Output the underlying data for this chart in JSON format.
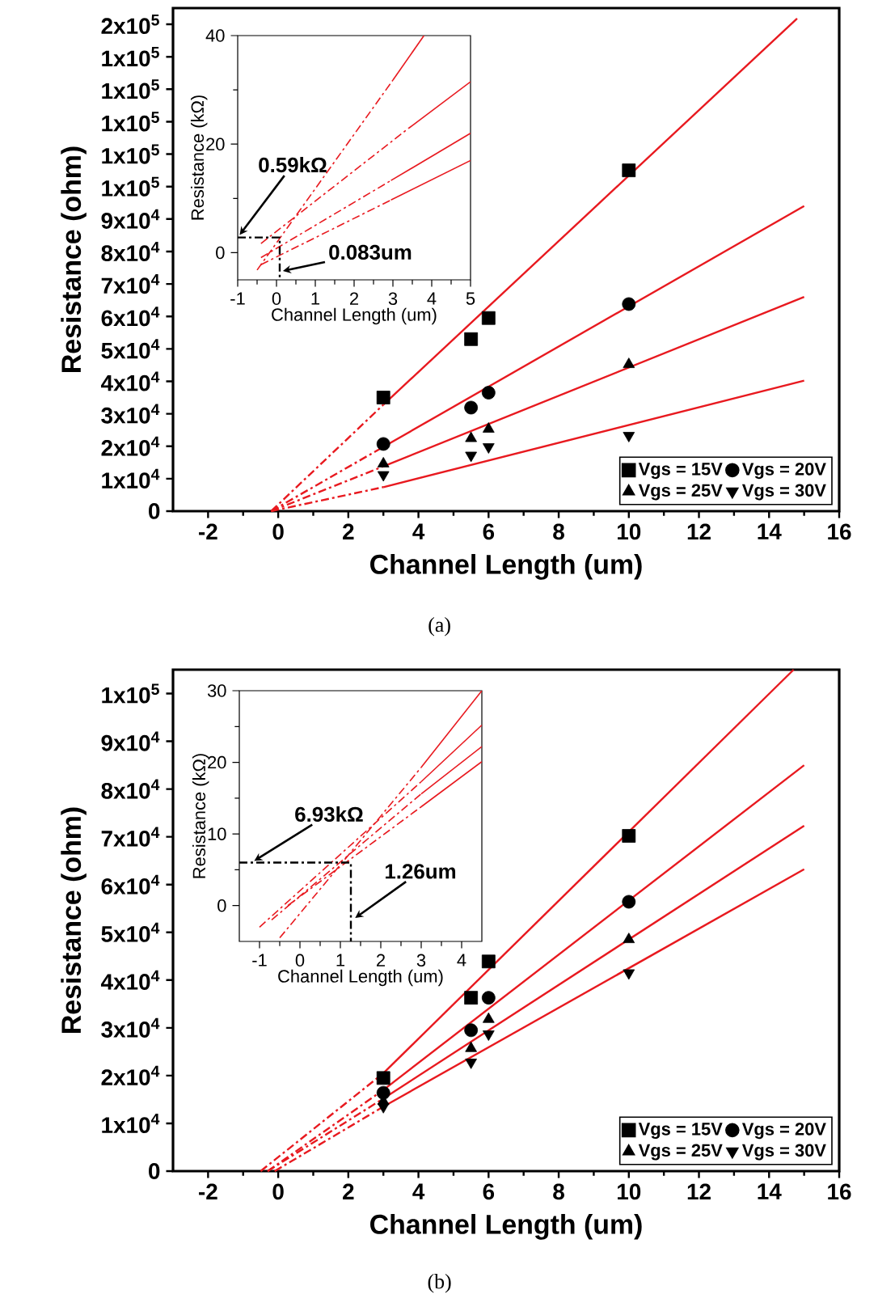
{
  "chart_data": [
    {
      "type": "scatter",
      "xlabel": "Channel Length (um)",
      "ylabel": "Resistance (ohm)",
      "xlim": [
        -3,
        16
      ],
      "ylim": [
        0,
        155000
      ],
      "xticks": [
        -2,
        0,
        2,
        4,
        6,
        8,
        10,
        12,
        14,
        16
      ],
      "yticks": [
        0,
        {
          "value": 10000,
          "label": "1x10$^{4}$"
        },
        {
          "value": 20000,
          "label": "2x10$^{4}$"
        },
        {
          "value": 30000,
          "label": "3x10$^{4}$"
        },
        {
          "value": 40000,
          "label": "4x10$^{4}$"
        },
        {
          "value": 50000,
          "label": "5x10$^{4}$"
        },
        {
          "value": 60000,
          "label": "6x10$^{4}$"
        },
        {
          "value": 70000,
          "label": "7x10$^{4}$"
        },
        {
          "value": 80000,
          "label": "8x10$^{4}$"
        },
        {
          "value": 90000,
          "label": "9x10$^{4}$"
        },
        {
          "value": 100000,
          "label": "1x10$^{5}$"
        },
        {
          "value": 110000,
          "label": "1x10$^{5}$"
        },
        {
          "value": 120000,
          "label": "1x10$^{5}$"
        },
        {
          "value": 130000,
          "label": "1x10$^{5}$"
        },
        {
          "value": 140000,
          "label": "1x10$^{5}$"
        },
        {
          "value": 150000,
          "label": "2x10$^{5}$"
        }
      ],
      "x": [
        3,
        5.5,
        6,
        10
      ],
      "legend": "bottom right",
      "annotations": [
        "(a)"
      ],
      "series": [
        {
          "name": "Vgs = 15V",
          "type": "scatter",
          "marker": "square",
          "color": "#000000",
          "values": [
            35000,
            53000,
            59500,
            105000
          ]
        },
        {
          "name": "Vgs = 20V",
          "type": "scatter",
          "marker": "circle",
          "color": "#000000",
          "values": [
            20700,
            31900,
            36500,
            63800
          ]
        },
        {
          "name": "Vgs = 25V",
          "type": "scatter",
          "marker": "triangle",
          "color": "#000000",
          "values": [
            14600,
            22400,
            25300,
            45200
          ]
        },
        {
          "name": "Vgs = 30V",
          "type": "scatter",
          "marker": "triangle_down",
          "color": "#000000",
          "values": [
            11200,
            17200,
            19800,
            23300
          ]
        },
        {
          "type": "line",
          "line_style": "dashed",
          "color": "#e8191f",
          "x": [
            -0.2,
            3
          ],
          "values": [
            0,
            32800
          ]
        },
        {
          "type": "line",
          "line_style": "solid",
          "color": "#e8191f",
          "x": [
            3,
            14.8
          ],
          "values": [
            32800,
            151800
          ]
        },
        {
          "type": "line",
          "line_style": "dashed",
          "color": "#e8191f",
          "x": [
            -0.2,
            3
          ],
          "values": [
            0,
            19800
          ]
        },
        {
          "type": "line",
          "line_style": "solid",
          "color": "#e8191f",
          "x": [
            3,
            15
          ],
          "values": [
            19800,
            94000
          ]
        },
        {
          "type": "line",
          "line_style": "dashed",
          "color": "#e8191f",
          "x": [
            -0.2,
            3
          ],
          "values": [
            0,
            13800
          ]
        },
        {
          "type": "line",
          "line_style": "solid",
          "color": "#e8191f",
          "x": [
            3,
            15
          ],
          "values": [
            13800,
            66000
          ]
        },
        {
          "type": "line",
          "line_style": "dashed",
          "color": "#e8191f",
          "x": [
            -0.2,
            3
          ],
          "values": [
            0,
            7400
          ]
        },
        {
          "type": "line",
          "line_style": "solid",
          "color": "#e8191f",
          "x": [
            3,
            15
          ],
          "values": [
            7400,
            40200
          ]
        }
      ]
    },
    {
      "type": "line",
      "xlabel": "Channel Length (um)",
      "ylabel": "Resistance (kΩ)",
      "xlim": [
        -1,
        5
      ],
      "ylim": [
        -5,
        40
      ],
      "xticks": [
        -1,
        0,
        1,
        2,
        3,
        4,
        5
      ],
      "yticks": [
        0,
        20,
        40
      ],
      "annotations": [
        {
          "text": "0.59kΩ",
          "x": -1,
          "y": 2.8
        },
        {
          "text": "0.083um",
          "x": 0.083,
          "y": -3.5
        }
      ],
      "series": [
        {
          "line_style": "dashed",
          "color": "#e8191f",
          "x": [
            -0.5,
            3
          ],
          "values": [
            -3.2,
            31.8
          ]
        },
        {
          "line_style": "solid",
          "color": "#e8191f",
          "x": [
            3,
            3.8
          ],
          "values": [
            31.8,
            40
          ]
        },
        {
          "line_style": "dashed",
          "color": "#e8191f",
          "x": [
            -0.4,
            3.4
          ],
          "values": [
            1.7,
            22.9
          ]
        },
        {
          "line_style": "solid",
          "color": "#e8191f",
          "x": [
            3.4,
            5
          ],
          "values": [
            22.9,
            31.5
          ]
        },
        {
          "line_style": "dashed",
          "color": "#e8191f",
          "x": [
            -0.4,
            2.95
          ],
          "values": [
            -0.9,
            13.3
          ]
        },
        {
          "line_style": "solid",
          "color": "#e8191f",
          "x": [
            2.95,
            5
          ],
          "values": [
            13.3,
            22
          ]
        },
        {
          "line_style": "dashed",
          "color": "#e8191f",
          "x": [
            -0.4,
            2.95
          ],
          "values": [
            -2.2,
            9.7
          ]
        },
        {
          "line_style": "solid",
          "color": "#e8191f",
          "x": [
            2.95,
            5
          ],
          "values": [
            9.7,
            17
          ]
        },
        {
          "line_style": "dashed",
          "color": "#000000",
          "x": [
            -1,
            0.083,
            0.083
          ],
          "values": [
            2.8,
            2.8,
            -5
          ]
        }
      ]
    },
    {
      "type": "scatter",
      "xlabel": "Channel Length (um)",
      "ylabel": "Resistance (ohm)",
      "xlim": [
        -3,
        16
      ],
      "ylim": [
        0,
        105000
      ],
      "xticks": [
        -2,
        0,
        2,
        4,
        6,
        8,
        10,
        12,
        14,
        16
      ],
      "yticks": [
        0,
        {
          "value": 10000,
          "label": "1x10$^{4}$"
        },
        {
          "value": 20000,
          "label": "2x10$^{4}$"
        },
        {
          "value": 30000,
          "label": "3x10$^{4}$"
        },
        {
          "value": 40000,
          "label": "4x10$^{4}$"
        },
        {
          "value": 50000,
          "label": "5x10$^{4}$"
        },
        {
          "value": 60000,
          "label": "6x10$^{4}$"
        },
        {
          "value": 70000,
          "label": "7x10$^{4}$"
        },
        {
          "value": 80000,
          "label": "8x10$^{4}$"
        },
        {
          "value": 90000,
          "label": "9x10$^{4}$"
        },
        {
          "value": 100000,
          "label": "1x10$^{5}$"
        }
      ],
      "x": [
        3,
        5.5,
        6,
        10
      ],
      "legend": "bottom right",
      "annotations": [
        "(b)"
      ],
      "series": [
        {
          "name": "Vgs = 15V",
          "type": "scatter",
          "marker": "square",
          "color": "#000000",
          "values": [
            19500,
            36300,
            43900,
            70200
          ]
        },
        {
          "name": "Vgs = 20V",
          "type": "scatter",
          "marker": "circle",
          "color": "#000000",
          "values": [
            16400,
            29500,
            36300,
            56400
          ]
        },
        {
          "name": "Vgs = 25V",
          "type": "scatter",
          "marker": "triangle",
          "color": "#000000",
          "values": [
            14600,
            25700,
            31800,
            48500
          ]
        },
        {
          "name": "Vgs = 30V",
          "type": "scatter",
          "marker": "triangle_down",
          "color": "#000000",
          "values": [
            13500,
            22800,
            28700,
            41500
          ]
        },
        {
          "type": "line",
          "line_style": "dashed",
          "color": "#e8191f",
          "x": [
            -0.5,
            3
          ],
          "values": [
            0,
            20500
          ]
        },
        {
          "type": "line",
          "line_style": "solid",
          "color": "#e8191f",
          "x": [
            3,
            14.7
          ],
          "values": [
            20500,
            105000
          ]
        },
        {
          "type": "line",
          "line_style": "dashed",
          "color": "#e8191f",
          "x": [
            -0.3,
            3
          ],
          "values": [
            0,
            17000
          ]
        },
        {
          "type": "line",
          "line_style": "solid",
          "color": "#e8191f",
          "x": [
            3,
            15
          ],
          "values": [
            17000,
            85000
          ]
        },
        {
          "type": "line",
          "line_style": "dashed",
          "color": "#e8191f",
          "x": [
            -0.3,
            3
          ],
          "values": [
            0,
            15200
          ]
        },
        {
          "type": "line",
          "line_style": "solid",
          "color": "#e8191f",
          "x": [
            3,
            15
          ],
          "values": [
            15200,
            72300
          ]
        },
        {
          "type": "line",
          "line_style": "dashed",
          "color": "#e8191f",
          "x": [
            -0.1,
            3
          ],
          "values": [
            0,
            13500
          ]
        },
        {
          "type": "line",
          "line_style": "solid",
          "color": "#e8191f",
          "x": [
            3,
            15
          ],
          "values": [
            13500,
            63200
          ]
        }
      ]
    },
    {
      "type": "line",
      "xlabel": "Channel Length (um)",
      "ylabel": "Resistance (kΩ)",
      "xlim": [
        -1.5,
        4.5
      ],
      "ylim": [
        -5,
        30
      ],
      "xticks": [
        -1,
        0,
        1,
        2,
        3,
        4
      ],
      "yticks": [
        0,
        10,
        20,
        30
      ],
      "annotations": [
        {
          "text": "6.93kΩ",
          "x": -1.2,
          "y": 6
        },
        {
          "text": "1.26um",
          "x": 1.3,
          "y": -2
        }
      ],
      "series": [
        {
          "line_style": "dashed",
          "color": "#e8191f",
          "x": [
            -0.5,
            3
          ],
          "values": [
            -4.5,
            19.3
          ]
        },
        {
          "line_style": "solid",
          "color": "#e8191f",
          "x": [
            3,
            4.5
          ],
          "values": [
            19.3,
            30
          ]
        },
        {
          "line_style": "dashed",
          "color": "#e8191f",
          "x": [
            -1,
            3
          ],
          "values": [
            -3,
            17.3
          ]
        },
        {
          "line_style": "solid",
          "color": "#e8191f",
          "x": [
            3,
            4.5
          ],
          "values": [
            17.3,
            25.2
          ]
        },
        {
          "line_style": "dashed",
          "color": "#e8191f",
          "x": [
            -0.7,
            3
          ],
          "values": [
            -2,
            15.6
          ]
        },
        {
          "line_style": "solid",
          "color": "#e8191f",
          "x": [
            3,
            4.5
          ],
          "values": [
            15.6,
            22.2
          ]
        },
        {
          "line_style": "dashed",
          "color": "#e8191f",
          "x": [
            -0.3,
            3
          ],
          "values": [
            0,
            13.8
          ]
        },
        {
          "line_style": "solid",
          "color": "#e8191f",
          "x": [
            3,
            4.5
          ],
          "values": [
            13.8,
            20.1
          ]
        },
        {
          "line_style": "dashed",
          "color": "#000000",
          "x": [
            -1.5,
            1.26,
            1.26
          ],
          "values": [
            6,
            6,
            -5
          ]
        }
      ]
    }
  ]
}
